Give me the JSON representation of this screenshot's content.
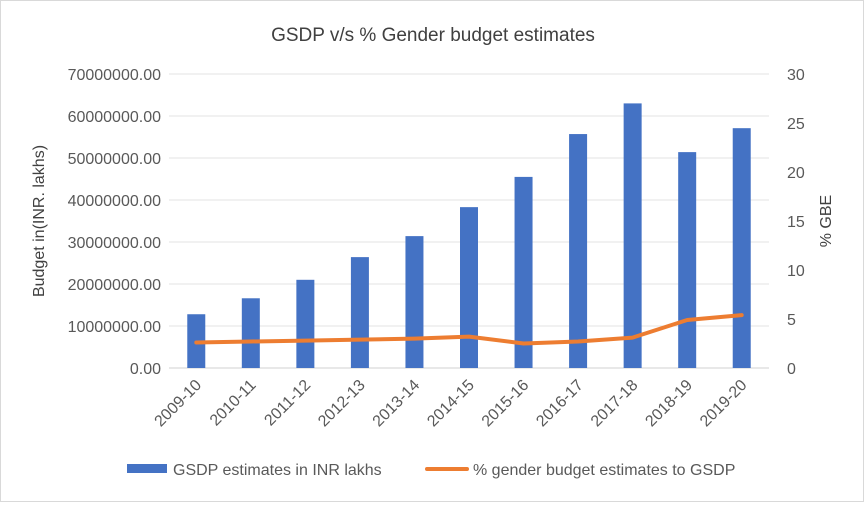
{
  "chart_data": {
    "type": "bar",
    "title": "GSDP v/s % Gender budget estimates",
    "categories": [
      "2009-10",
      "2010-11",
      "2011-12",
      "2012-13",
      "2013-14",
      "2014-15",
      "2015-16",
      "2016-17",
      "2017-18",
      "2018-19",
      "2019-20"
    ],
    "ylabel": "Budget in(INR. lakhs)",
    "y2label": "% GBE",
    "ylim": [
      0,
      70000000
    ],
    "y2lim": [
      0,
      30
    ],
    "yticks": [
      "0.00",
      "10000000.00",
      "20000000.00",
      "30000000.00",
      "40000000.00",
      "50000000.00",
      "60000000.00",
      "70000000.00"
    ],
    "y2ticks": [
      "0",
      "5",
      "10",
      "15",
      "20",
      "25",
      "30"
    ],
    "series": [
      {
        "name": "GSDP estimates in INR lakhs",
        "type": "bar",
        "axis": "left",
        "color": "#4472c4",
        "values": [
          12800000,
          16600000,
          21000000,
          26400000,
          31400000,
          38300000,
          45500000,
          55700000,
          63000000,
          51400000,
          57100000
        ]
      },
      {
        "name": "% gender budget estimates to GSDP",
        "type": "line",
        "axis": "right",
        "color": "#ed7d31",
        "values": [
          2.6,
          2.7,
          2.8,
          2.9,
          3.0,
          3.2,
          2.5,
          2.7,
          3.1,
          4.9,
          5.4
        ]
      }
    ],
    "legend_position": "bottom",
    "grid": true
  }
}
